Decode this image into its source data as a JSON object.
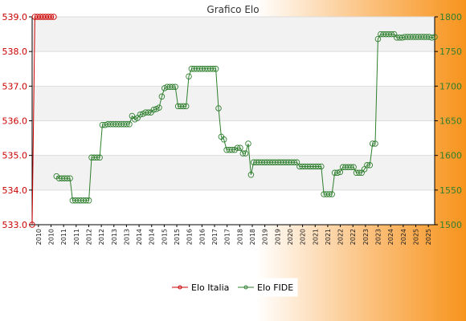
{
  "chart_data": {
    "type": "line",
    "title": "Grafico Elo",
    "y_left_ticks": [
      "533.0",
      "534.0",
      "535.0",
      "536.0",
      "537.0",
      "538.0",
      "539.0"
    ],
    "y_left_range": [
      533,
      539
    ],
    "y_right_ticks": [
      "1500",
      "1550",
      "1600",
      "1650",
      "1700",
      "1750",
      "1800"
    ],
    "y_right_range": [
      1500,
      1800
    ],
    "x_tick_labels": [
      "2010",
      "2010",
      "2011",
      "2011",
      "2012",
      "2012",
      "2013",
      "2013",
      "2014",
      "2014",
      "2015",
      "2015",
      "2016",
      "2016",
      "2017",
      "2017",
      "2018",
      "2018",
      "2019",
      "2019",
      "2020",
      "2020",
      "2021",
      "2021",
      "2022",
      "2022",
      "2023",
      "2023",
      "2024",
      "2024",
      "2025",
      "2025"
    ],
    "series": [
      {
        "name": "Elo Italia",
        "color": "#cc0000",
        "axis": "left",
        "values": [
          533.0,
          539.0,
          539.0,
          539.0,
          539.0,
          539.0,
          539.0,
          539.0,
          539.0
        ]
      },
      {
        "name": "Elo FIDE",
        "color": "#2f7f2f",
        "axis": "right",
        "start_index": 9,
        "values": [
          1570,
          1567,
          1567,
          1567,
          1567,
          1567,
          1535,
          1535,
          1535,
          1535,
          1535,
          1535,
          1535,
          1597,
          1597,
          1597,
          1597,
          1644,
          1644,
          1645,
          1645,
          1645,
          1645,
          1645,
          1645,
          1645,
          1645,
          1645,
          1657,
          1652,
          1654,
          1659,
          1660,
          1662,
          1662,
          1662,
          1666,
          1667,
          1669,
          1685,
          1697,
          1699,
          1699,
          1699,
          1699,
          1671,
          1671,
          1671,
          1671,
          1714,
          1725,
          1725,
          1725,
          1725,
          1725,
          1725,
          1725,
          1725,
          1725,
          1725,
          1668,
          1627,
          1623,
          1608,
          1608,
          1608,
          1608,
          1611,
          1611,
          1603,
          1603,
          1617,
          1572,
          1590,
          1590,
          1590,
          1590,
          1590,
          1590,
          1590,
          1590,
          1590,
          1590,
          1590,
          1590,
          1590,
          1590,
          1590,
          1590,
          1590,
          1584,
          1584,
          1584,
          1584,
          1584,
          1584,
          1584,
          1584,
          1584,
          1544,
          1544,
          1544,
          1544,
          1575,
          1575,
          1576,
          1583,
          1583,
          1583,
          1583,
          1583,
          1575,
          1575,
          1575,
          1580,
          1586,
          1586,
          1617,
          1617,
          1768,
          1775,
          1775,
          1775,
          1775,
          1775,
          1775,
          1770,
          1770,
          1770,
          1771,
          1771,
          1771,
          1771,
          1771,
          1771,
          1771,
          1771,
          1771,
          1771,
          1770,
          1771
        ]
      }
    ],
    "grid": true,
    "legend": "bottom"
  }
}
